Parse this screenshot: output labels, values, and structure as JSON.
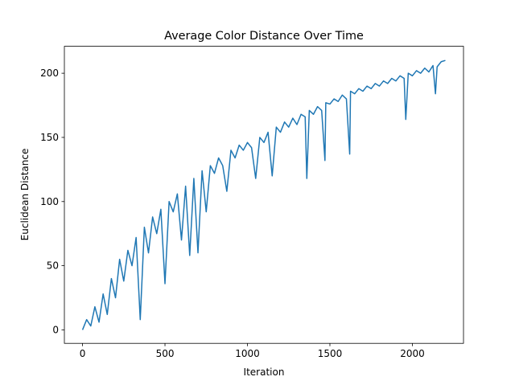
{
  "chart_data": {
    "type": "line",
    "title": "Average Color Distance Over Time",
    "xlabel": "Iteration",
    "ylabel": "Euclidean Distance",
    "x": [
      0,
      25,
      50,
      75,
      100,
      125,
      150,
      175,
      200,
      225,
      250,
      275,
      300,
      325,
      350,
      375,
      400,
      425,
      450,
      475,
      500,
      525,
      550,
      575,
      600,
      625,
      650,
      675,
      700,
      725,
      750,
      775,
      800,
      825,
      850,
      875,
      900,
      925,
      950,
      975,
      1000,
      1025,
      1050,
      1075,
      1100,
      1125,
      1150,
      1175,
      1200,
      1225,
      1250,
      1275,
      1300,
      1325,
      1350,
      1360,
      1375,
      1400,
      1425,
      1450,
      1470,
      1475,
      1500,
      1525,
      1550,
      1575,
      1600,
      1620,
      1625,
      1650,
      1675,
      1700,
      1725,
      1750,
      1775,
      1800,
      1825,
      1850,
      1875,
      1900,
      1925,
      1950,
      1960,
      1975,
      2000,
      2025,
      2050,
      2075,
      2100,
      2125,
      2140,
      2150,
      2175,
      2200
    ],
    "series": [
      {
        "name": "Average Color Distance",
        "color": "#1f77b4",
        "values": [
          0,
          8,
          3,
          18,
          6,
          28,
          12,
          40,
          25,
          55,
          38,
          62,
          50,
          72,
          8,
          80,
          60,
          88,
          75,
          94,
          36,
          100,
          92,
          106,
          70,
          112,
          58,
          118,
          60,
          124,
          92,
          128,
          122,
          134,
          128,
          108,
          140,
          134,
          144,
          140,
          146,
          142,
          118,
          150,
          146,
          154,
          120,
          158,
          154,
          162,
          158,
          165,
          160,
          168,
          166,
          118,
          171,
          168,
          174,
          171,
          132,
          177,
          176,
          180,
          178,
          183,
          180,
          137,
          186,
          184,
          188,
          186,
          190,
          188,
          192,
          190,
          194,
          192,
          196,
          194,
          198,
          196,
          164,
          200,
          198,
          202,
          200,
          204,
          201,
          206,
          184,
          205,
          209,
          210
        ]
      }
    ],
    "xlim": [
      -110,
      2310
    ],
    "ylim": [
      -10.5,
      221
    ],
    "xticks": [
      0,
      500,
      1000,
      1500,
      2000
    ],
    "yticks": [
      0,
      50,
      100,
      150,
      200
    ]
  }
}
